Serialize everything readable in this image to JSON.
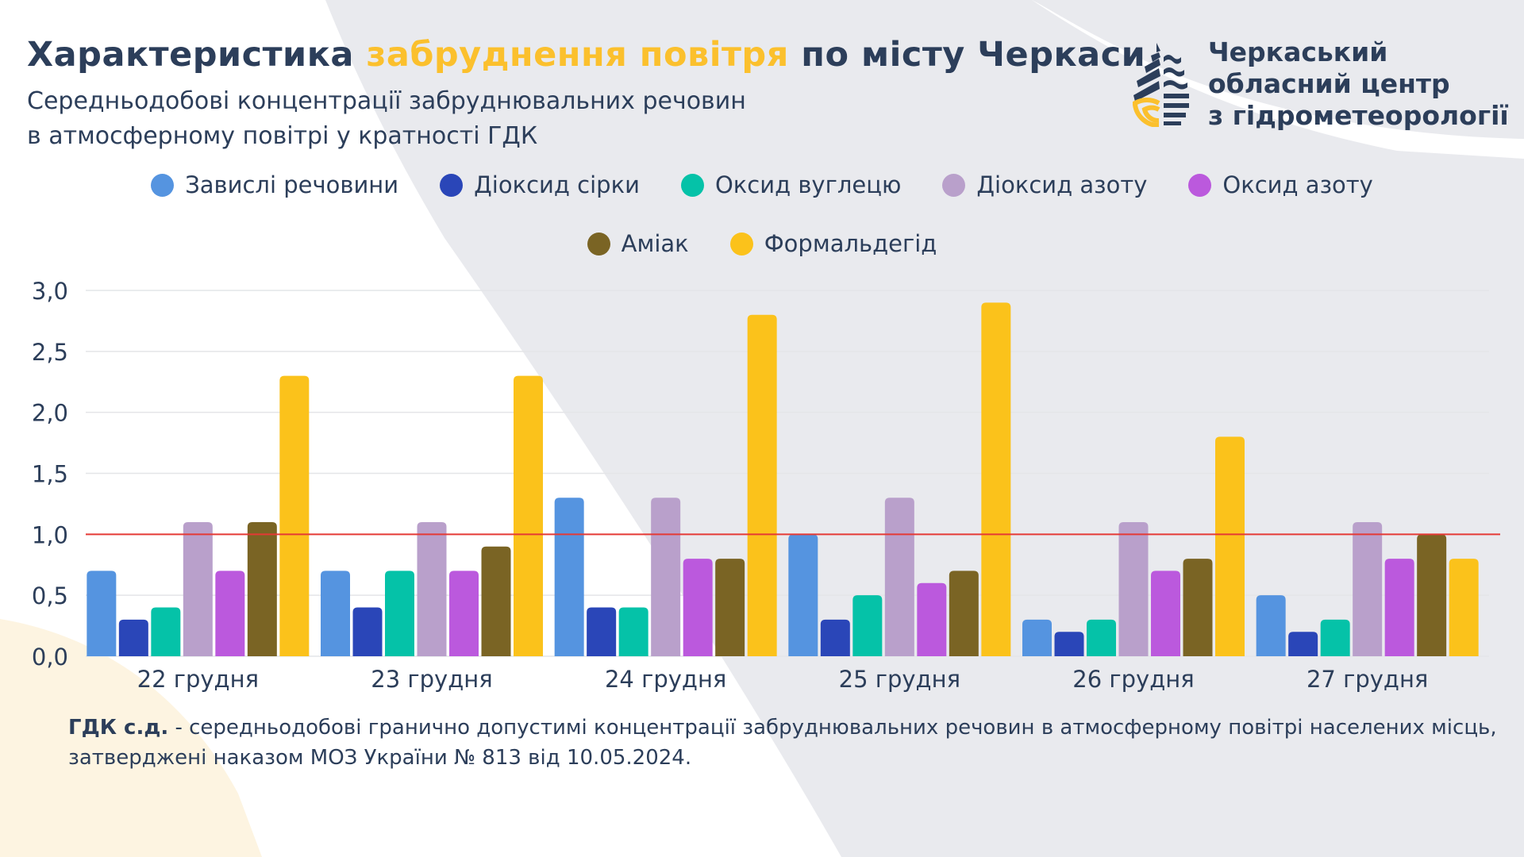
{
  "header": {
    "title_part1": "Характеристика ",
    "title_highlight": "забруднення повітря",
    "title_part2": " по місту Черкаси",
    "subtitle_line1": "Середньодобові концентрації забруднювальних речовин",
    "subtitle_line2": "в атмосферному повітрі у кратності ГДК"
  },
  "logo": {
    "line1": "Черкаський",
    "line2": "обласний центр",
    "line3": "з гідрометеорології"
  },
  "colors": {
    "text": "#2c3e5a",
    "highlight": "#fbc02d",
    "threshold": "#e53935",
    "background_shape": "#e9eaee"
  },
  "chart_data": {
    "type": "bar",
    "categories": [
      "22 грудня",
      "23 грудня",
      "24 грудня",
      "25 грудня",
      "26 грудня",
      "27 грудня"
    ],
    "series": [
      {
        "name": "Завислі речовини",
        "color": "#5594e0",
        "values": [
          0.7,
          0.7,
          1.3,
          1.0,
          0.3,
          0.5
        ]
      },
      {
        "name": "Діоксид сірки",
        "color": "#2a46b8",
        "values": [
          0.3,
          0.4,
          0.4,
          0.3,
          0.2,
          0.2
        ]
      },
      {
        "name": "Оксид вуглецю",
        "color": "#05c2a8",
        "values": [
          0.4,
          0.7,
          0.4,
          0.5,
          0.3,
          0.3
        ]
      },
      {
        "name": "Діоксид азоту",
        "color": "#b9a0cb",
        "values": [
          1.1,
          1.1,
          1.3,
          1.3,
          1.1,
          1.1
        ]
      },
      {
        "name": "Оксид азоту",
        "color": "#bb59dd",
        "values": [
          0.7,
          0.7,
          0.8,
          0.6,
          0.7,
          0.8
        ]
      },
      {
        "name": "Аміак",
        "color": "#7a6424",
        "values": [
          1.1,
          0.9,
          0.8,
          0.7,
          0.8,
          1.0
        ]
      },
      {
        "name": "Формальдегід",
        "color": "#fbc21b",
        "values": [
          2.3,
          2.3,
          2.8,
          2.9,
          1.8,
          0.8
        ]
      }
    ],
    "yticks": [
      "0,0",
      "0,5",
      "1,0",
      "1,5",
      "2,0",
      "2,5",
      "3,0"
    ],
    "ylim": [
      0,
      3.0
    ],
    "threshold": 1.0,
    "grid": true,
    "legend_placement": "top"
  },
  "footer": {
    "bold": "ГДК с.д.",
    "text": " - середньодобові гранично допустимі концентрації забруднювальних речовин в атмосферному повітрі населених місць, затверджені наказом МОЗ України № 813 від 10.05.2024."
  }
}
